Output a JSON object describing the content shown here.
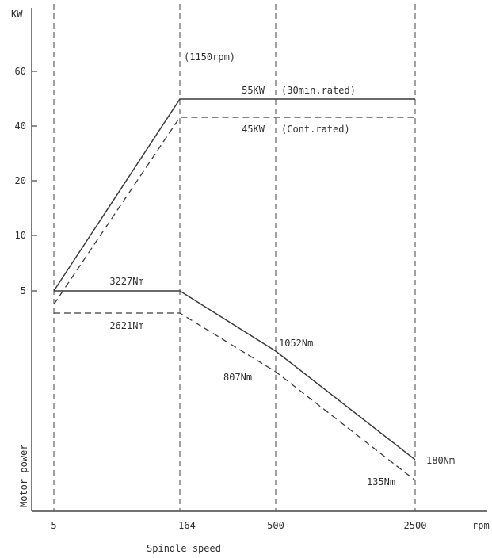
{
  "chart_data": {
    "type": "line",
    "ylabel_top": "KW",
    "ylabel_side": "Motor power",
    "xlabel": "Spindle speed",
    "x_unit": "rpm",
    "x_ticks": [
      "5",
      "164",
      "500",
      "2500"
    ],
    "y_ticks": [
      "60",
      "40",
      "20",
      "10",
      "5"
    ],
    "speed_annotation": "(1150rpm)",
    "power_series": [
      {
        "label": "55KW",
        "rating": "(30min.rated)",
        "style": "solid",
        "points": [
          [
            "5",
            5
          ],
          [
            "164",
            55
          ],
          [
            "2500",
            55
          ]
        ]
      },
      {
        "label": "45KW",
        "rating": "(Cont.rated)",
        "style": "dashed",
        "points": [
          [
            "5",
            null
          ],
          [
            "164",
            45
          ],
          [
            "2500",
            45
          ]
        ]
      }
    ],
    "torque_series": [
      {
        "style": "solid",
        "points": [
          {
            "x": "5",
            "label": ""
          },
          {
            "x": "164",
            "label": "3227Nm"
          },
          {
            "x": "500",
            "label": "1052Nm"
          },
          {
            "x": "2500",
            "label": "180Nm"
          }
        ]
      },
      {
        "style": "dashed",
        "points": [
          {
            "x": "5",
            "label": ""
          },
          {
            "x": "164",
            "label": "2621Nm"
          },
          {
            "x": "500",
            "label": "807Nm"
          },
          {
            "x": "2500",
            "label": "135Nm"
          }
        ]
      }
    ],
    "colors": {
      "ink": "#3a3a3a",
      "background": "#ffffff"
    }
  }
}
